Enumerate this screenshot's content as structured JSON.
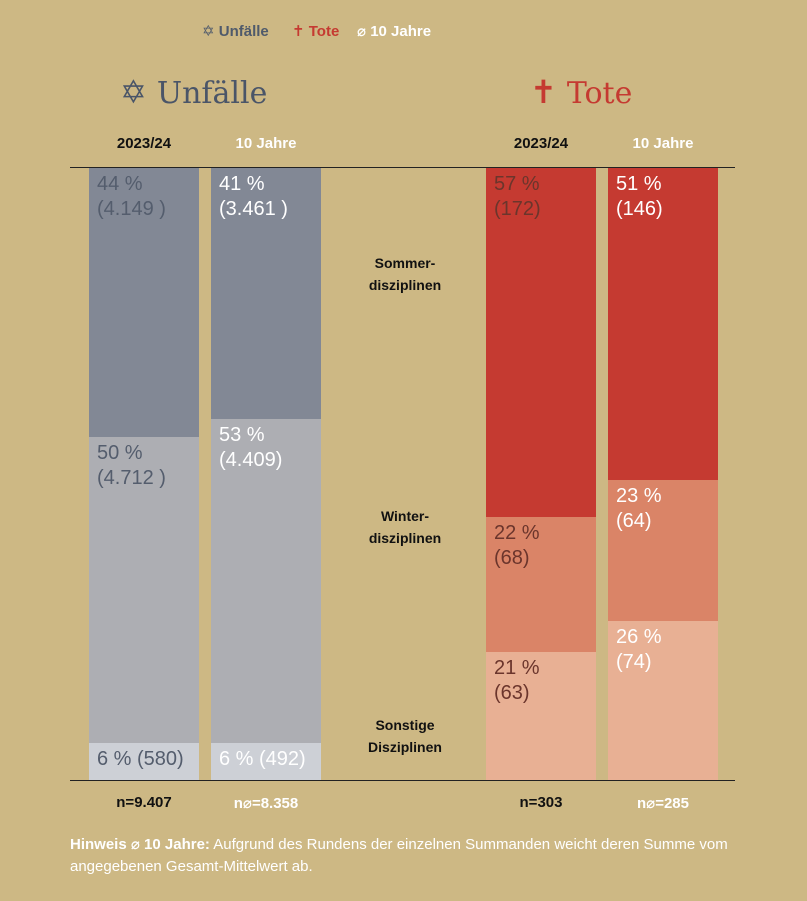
{
  "legend": {
    "unfaelle_icon": "star-of-david-icon",
    "unfaelle": "Unfälle",
    "tote_icon": "cross-icon",
    "tote": "Tote",
    "avg_icon": "diameter-icon",
    "avg": "10 Jahre"
  },
  "headings": {
    "unfaelle": "Unfälle",
    "tote": "Tote"
  },
  "categories": [
    "Sommer-\ndisziplinen",
    "Winter-\ndisziplinen",
    "Sonstige\nDisziplinen"
  ],
  "colors": {
    "background": "#cdb884",
    "unf_summer": "#828895",
    "unf_winter": "#adaeb3",
    "unf_other": "#cdd0d6",
    "tot_summer": "#c53a31",
    "tot_winter": "#da8467",
    "tot_other": "#e8b094",
    "label_dark_unf": "#545d6d",
    "label_dark_tot": "#6b352c",
    "label_light": "#ffffff"
  },
  "chart_data": {
    "type": "bar",
    "stacked": true,
    "normalized": true,
    "categories": [
      "Sommerdisziplinen",
      "Winterdisziplinen",
      "Sonstige Disziplinen"
    ],
    "groups": [
      {
        "key": "unfaelle",
        "columns": [
          {
            "header": "2023/24",
            "n_label": "n=9.407",
            "values": [
              44,
              50,
              6
            ],
            "labels": [
              "44 %\n(4.149 )",
              "50 %\n(4.712 )",
              "6 % (580)"
            ]
          },
          {
            "header": "10 Jahre",
            "n_label": "n⌀=8.358",
            "values": [
              41,
              53,
              6
            ],
            "labels": [
              "41 %\n(3.461 )",
              "53 %\n(4.409)",
              "6 % (492)"
            ]
          }
        ]
      },
      {
        "key": "tote",
        "columns": [
          {
            "header": "2023/24",
            "n_label": "n=303",
            "values": [
              57,
              22,
              21
            ],
            "labels": [
              "57 %\n(172)",
              "22 %\n(68)",
              "21 %\n(63)"
            ]
          },
          {
            "header": "10 Jahre",
            "n_label": "n⌀=285",
            "values": [
              51,
              23,
              26
            ],
            "labels": [
              "51 %\n(146)",
              "23 %\n(64)",
              "26 %\n(74)"
            ]
          }
        ]
      }
    ]
  },
  "note": {
    "bold": "Hinweis ⌀ 10 Jahre:",
    "text": " Aufgrund des Rundens der einzelnen Summanden weicht deren Summe vom angegebenen Gesamt-Mittelwert ab."
  }
}
